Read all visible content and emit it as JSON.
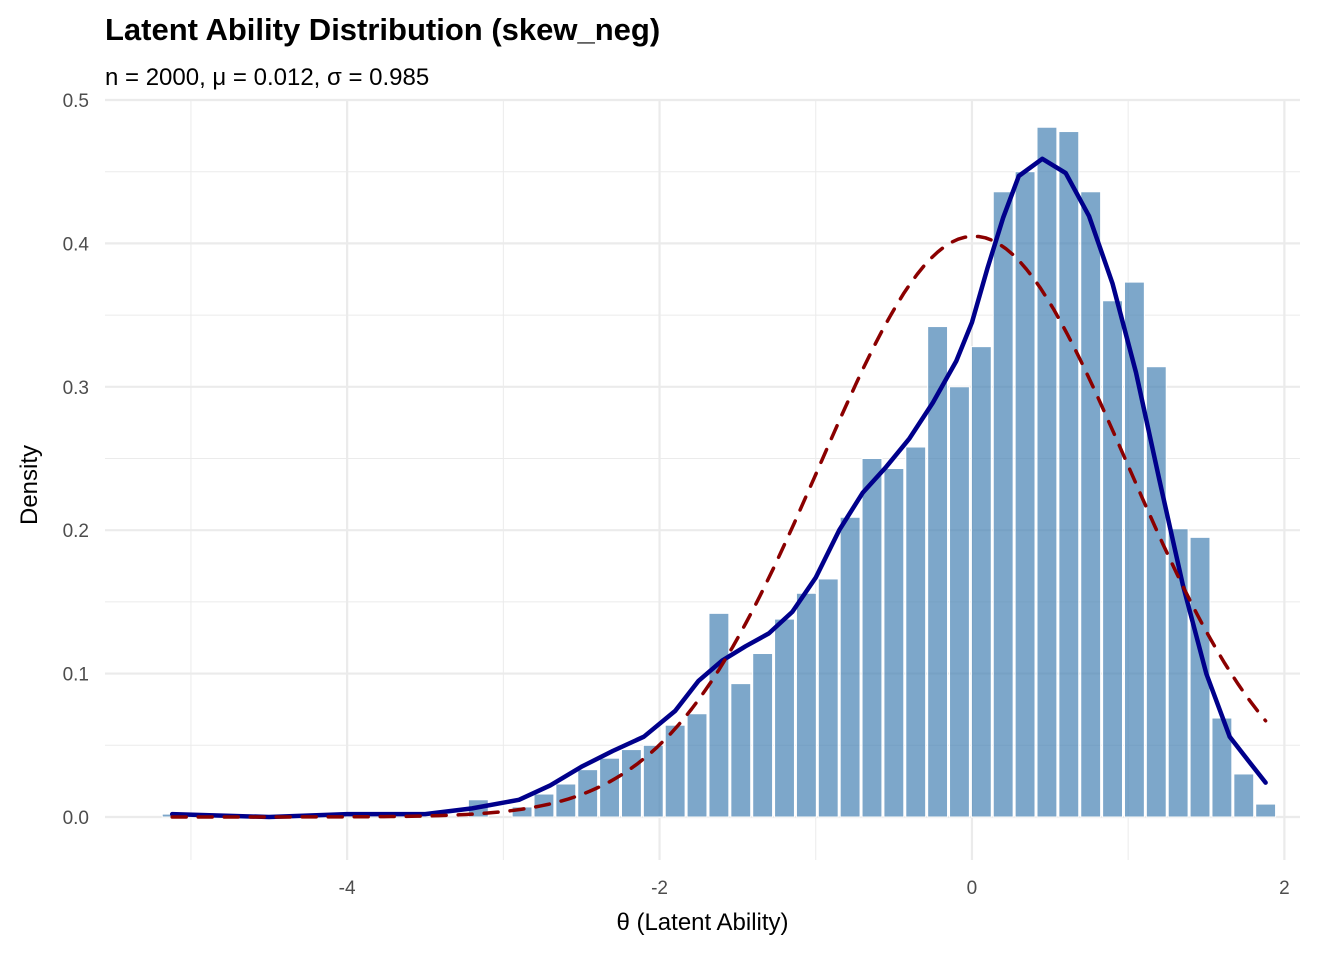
{
  "chart_data": {
    "type": "bar",
    "title": "Latent Ability Distribution (skew_neg)",
    "subtitle": "n = 2000, μ = 0.012, σ = 0.985",
    "xlabel": "θ (Latent Ability)",
    "ylabel": "Density",
    "xlim": [
      -5.55,
      2.1
    ],
    "ylim": [
      -0.03,
      0.5
    ],
    "x_ticks": [
      -4,
      -2,
      0,
      2
    ],
    "x_tick_labels": [
      "-4",
      "-2",
      "0",
      "2"
    ],
    "y_ticks": [
      0.0,
      0.1,
      0.2,
      0.3,
      0.4,
      0.5
    ],
    "y_tick_labels": [
      "0.0",
      "0.1",
      "0.2",
      "0.3",
      "0.4",
      "0.5"
    ],
    "grid": true,
    "legend": "none",
    "bin_width": 0.14,
    "bins": [
      {
        "x": -5.12,
        "density": 0.002
      },
      {
        "x": -3.16,
        "density": 0.012
      },
      {
        "x": -2.88,
        "density": 0.007
      },
      {
        "x": -2.74,
        "density": 0.016
      },
      {
        "x": -2.6,
        "density": 0.023
      },
      {
        "x": -2.46,
        "density": 0.033
      },
      {
        "x": -2.32,
        "density": 0.041
      },
      {
        "x": -2.18,
        "density": 0.047
      },
      {
        "x": -2.04,
        "density": 0.05
      },
      {
        "x": -1.9,
        "density": 0.064
      },
      {
        "x": -1.76,
        "density": 0.072
      },
      {
        "x": -1.62,
        "density": 0.142
      },
      {
        "x": -1.48,
        "density": 0.093
      },
      {
        "x": -1.34,
        "density": 0.114
      },
      {
        "x": -1.2,
        "density": 0.138
      },
      {
        "x": -1.06,
        "density": 0.156
      },
      {
        "x": -0.92,
        "density": 0.166
      },
      {
        "x": -0.78,
        "density": 0.209
      },
      {
        "x": -0.64,
        "density": 0.25
      },
      {
        "x": -0.5,
        "density": 0.243
      },
      {
        "x": -0.36,
        "density": 0.258
      },
      {
        "x": -0.22,
        "density": 0.342
      },
      {
        "x": -0.08,
        "density": 0.3
      },
      {
        "x": 0.06,
        "density": 0.328
      },
      {
        "x": 0.2,
        "density": 0.436
      },
      {
        "x": 0.34,
        "density": 0.45
      },
      {
        "x": 0.48,
        "density": 0.481
      },
      {
        "x": 0.62,
        "density": 0.478
      },
      {
        "x": 0.76,
        "density": 0.436
      },
      {
        "x": 0.9,
        "density": 0.36
      },
      {
        "x": 1.04,
        "density": 0.373
      },
      {
        "x": 1.18,
        "density": 0.314
      },
      {
        "x": 1.32,
        "density": 0.201
      },
      {
        "x": 1.46,
        "density": 0.195
      },
      {
        "x": 1.6,
        "density": 0.069
      },
      {
        "x": 1.74,
        "density": 0.03
      },
      {
        "x": 1.88,
        "density": 0.009
      }
    ],
    "series": [
      {
        "name": "kde",
        "color": "#00008b",
        "style": "solid",
        "points": [
          [
            -5.12,
            0.002
          ],
          [
            -4.5,
            0.0
          ],
          [
            -4.0,
            0.002
          ],
          [
            -3.5,
            0.002
          ],
          [
            -3.2,
            0.006
          ],
          [
            -2.9,
            0.012
          ],
          [
            -2.7,
            0.022
          ],
          [
            -2.5,
            0.035
          ],
          [
            -2.3,
            0.046
          ],
          [
            -2.1,
            0.056
          ],
          [
            -1.9,
            0.074
          ],
          [
            -1.75,
            0.095
          ],
          [
            -1.6,
            0.109
          ],
          [
            -1.45,
            0.119
          ],
          [
            -1.3,
            0.128
          ],
          [
            -1.15,
            0.143
          ],
          [
            -1.0,
            0.167
          ],
          [
            -0.85,
            0.2
          ],
          [
            -0.7,
            0.226
          ],
          [
            -0.55,
            0.244
          ],
          [
            -0.4,
            0.264
          ],
          [
            -0.25,
            0.289
          ],
          [
            -0.1,
            0.318
          ],
          [
            0.0,
            0.345
          ],
          [
            0.1,
            0.383
          ],
          [
            0.2,
            0.418
          ],
          [
            0.3,
            0.447
          ],
          [
            0.45,
            0.459
          ],
          [
            0.6,
            0.449
          ],
          [
            0.75,
            0.419
          ],
          [
            0.9,
            0.372
          ],
          [
            1.05,
            0.31
          ],
          [
            1.2,
            0.235
          ],
          [
            1.35,
            0.162
          ],
          [
            1.5,
            0.1
          ],
          [
            1.65,
            0.056
          ],
          [
            1.8,
            0.035
          ],
          [
            1.88,
            0.024
          ]
        ]
      },
      {
        "name": "normal",
        "color": "#8b0000",
        "style": "dashed",
        "mean": 0.012,
        "sd": 0.985,
        "x_range": [
          -5.12,
          1.88
        ]
      }
    ],
    "bar_color": "#4682b4",
    "bar_opacity": 0.7
  }
}
